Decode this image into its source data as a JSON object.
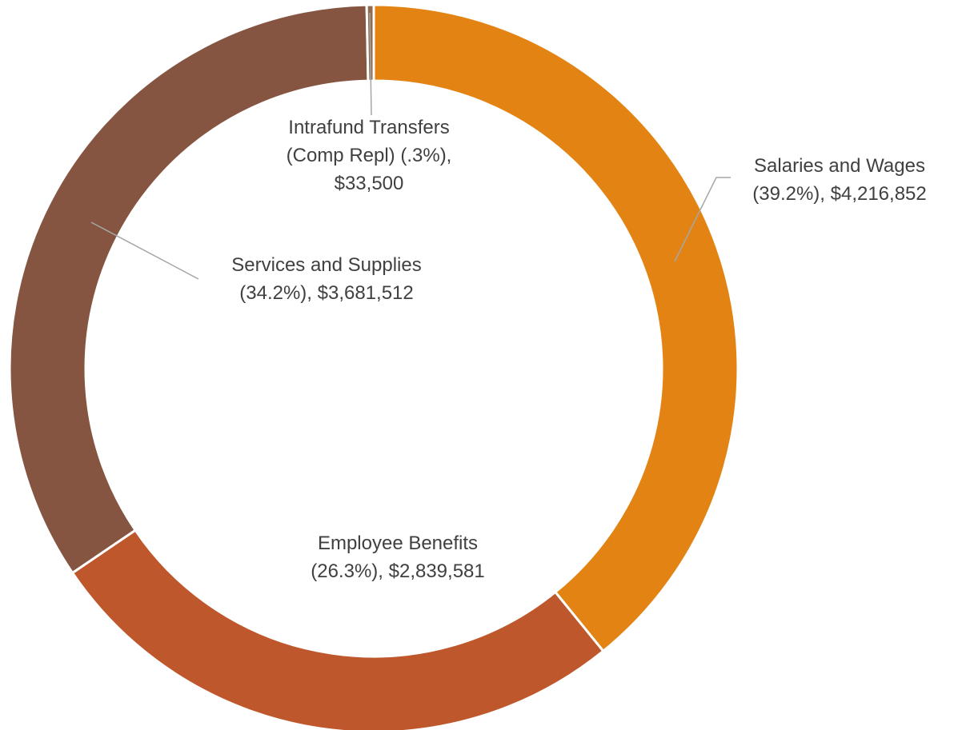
{
  "chart_data": {
    "type": "pie",
    "donut": true,
    "slices": [
      {
        "name": "Salaries and Wages",
        "percent_label": "(39.2%)",
        "value_label": "$4,216,852",
        "value": 4216852,
        "color": "#E38313"
      },
      {
        "name": "Employee Benefits",
        "percent_label": "(26.3%)",
        "value_label": "$2,839,581",
        "value": 2839581,
        "color": "#BE582C"
      },
      {
        "name": "Services and Supplies",
        "percent_label": "(34.2%)",
        "value_label": "$3,681,512",
        "value": 3681512,
        "color": "#855541"
      },
      {
        "name": "Intrafund Transfers (Comp Repl)",
        "percent_label": "(.3%)",
        "value_label": "$33,500",
        "value": 33500,
        "color": "#8E6A4E"
      }
    ],
    "data_labels": [
      {
        "lines": [
          "Salaries and Wages",
          "(39.2%),  $4,216,852"
        ]
      },
      {
        "lines": [
          "Employee Benefits",
          "(26.3%),  $2,839,581"
        ]
      },
      {
        "lines": [
          "Services and Supplies",
          "(34.2%),  $3,681,512"
        ]
      },
      {
        "lines": [
          "Intrafund Transfers",
          "(Comp Repl) (.3%),",
          "$33,500"
        ]
      }
    ],
    "legend": "none",
    "title": ""
  }
}
